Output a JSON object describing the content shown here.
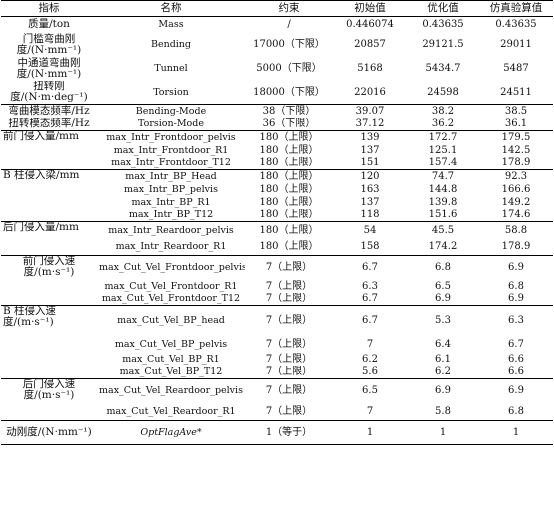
{
  "header": {
    "indicator": "指标",
    "name": "名称",
    "constraint": "约束",
    "initial": "初始值",
    "optimized": "优化值",
    "validation": "仿真验算值"
  },
  "rows": [
    {
      "indicator": "质量/ton",
      "name": "Mass",
      "constraint": "/",
      "initial": "0.446074",
      "optimized": "0.43635",
      "validation": "0.43635"
    },
    {
      "indicator": "门槛弯曲刚度/(N·mm⁻¹)",
      "name": "Bending",
      "constraint": "17000（下限）",
      "initial": "20857",
      "optimized": "29121.5",
      "validation": "29011"
    },
    {
      "indicator": "中通道弯曲刚度/(N·mm⁻¹)",
      "name": "Tunnel",
      "constraint": "5000（下限）",
      "initial": "5168",
      "optimized": "5434.7",
      "validation": "5487"
    },
    {
      "indicator": "扭转刚度/(N·m·deg⁻¹)",
      "name": "Torsion",
      "constraint": "18000（下限）",
      "initial": "22016",
      "optimized": "24598",
      "validation": "24511"
    },
    {
      "indicator": "弯曲模态频率/Hz",
      "name": "Bending-Mode",
      "constraint": "38（下限）",
      "initial": "39.07",
      "optimized": "38.2",
      "validation": "38.5"
    },
    {
      "indicator": "扭转模态频率/Hz",
      "name": "Torsion-Mode",
      "constraint": "36（下限）",
      "initial": "37.12",
      "optimized": "36.2",
      "validation": "36.1"
    },
    {
      "indicator": "前门侵入量/mm",
      "name": "max_Intr_Frontdoor_pelvis",
      "constraint": "180（上限）",
      "initial": "139",
      "optimized": "172.7",
      "validation": "179.5"
    },
    {
      "name": "max_Intr_Frontdoor_R1",
      "constraint": "180（上限）",
      "initial": "137",
      "optimized": "125.1",
      "validation": "142.5"
    },
    {
      "name": "max_Intr_Frontdoor_T12",
      "constraint": "180（上限）",
      "initial": "151",
      "optimized": "157.4",
      "validation": "178.9"
    },
    {
      "indicator": "B 柱侵入梁/mm",
      "name": "max_Intr_BP_Head",
      "constraint": "180（上限）",
      "initial": "120",
      "optimized": "74.7",
      "validation": "92.3"
    },
    {
      "name": "max_Intr_BP_pelvis",
      "constraint": "180（上限）",
      "initial": "163",
      "optimized": "144.8",
      "validation": "166.6"
    },
    {
      "name": "max_Intr_BP_R1",
      "constraint": "180（上限）",
      "initial": "137",
      "optimized": "139.8",
      "validation": "149.2"
    },
    {
      "name": "max_Intr_BP_T12",
      "constraint": "180（上限）",
      "initial": "118",
      "optimized": "151.6",
      "validation": "174.6"
    },
    {
      "indicator": "后门侵入量/mm",
      "name": "max_Intr_Reardoor_pelvis",
      "constraint": "180（上限）",
      "initial": "54",
      "optimized": "45.5",
      "validation": "58.8"
    },
    {
      "name": "max_Intr_Reardoor_R1",
      "constraint": "180（上限）",
      "initial": "158",
      "optimized": "174.2",
      "validation": "178.9"
    },
    {
      "indicator": "前门侵入速度/(m·s⁻¹)",
      "name": "max_Cut_Vel_Frontdoor_pelvis",
      "constraint": "7（上限）",
      "initial": "6.7",
      "optimized": "6.8",
      "validation": "6.9"
    },
    {
      "name": "max_Cut_Vel_Frontdoor_R1",
      "constraint": "7（上限）",
      "initial": "6.3",
      "optimized": "6.5",
      "validation": "6.8"
    },
    {
      "name": "max_Cut_Vel_Frontdoor_T12",
      "constraint": "7（上限）",
      "initial": "6.7",
      "optimized": "6.9",
      "validation": "6.9"
    },
    {
      "indicator": "B 柱侵入速度/(m·s⁻¹)",
      "name": "max_Cut_Vel_BP_head",
      "constraint": "7（上限）",
      "initial": "6.7",
      "optimized": "5.3",
      "validation": "6.3"
    },
    {
      "name": "max_Cut_Vel_BP_pelvis",
      "constraint": "7（上限）",
      "initial": "7",
      "optimized": "6.4",
      "validation": "6.7"
    },
    {
      "name": "max_Cut_Vel_BP_R1",
      "constraint": "7（上限）",
      "initial": "6.2",
      "optimized": "6.1",
      "validation": "6.6"
    },
    {
      "name": "max_Cut_Vel_BP_T12",
      "constraint": "7（上限）",
      "initial": "5.6",
      "optimized": "6.2",
      "validation": "6.6"
    },
    {
      "indicator": "后门侵入速度/(m·s⁻¹)",
      "name": "max_Cut_Vel_Reardoor_pelvis",
      "constraint": "7（上限）",
      "initial": "6.5",
      "optimized": "6.9",
      "validation": "6.9"
    },
    {
      "name": "max_Cut_Vel_Reardoor_R1",
      "constraint": "7（上限）",
      "initial": "7",
      "optimized": "5.8",
      "validation": "6.8"
    },
    {
      "indicator": "动刚度/(N·mm⁻¹)",
      "name": "OptFlagAve*",
      "constraint": "1（等于）",
      "initial": "1",
      "optimized": "1",
      "validation": "1"
    }
  ]
}
